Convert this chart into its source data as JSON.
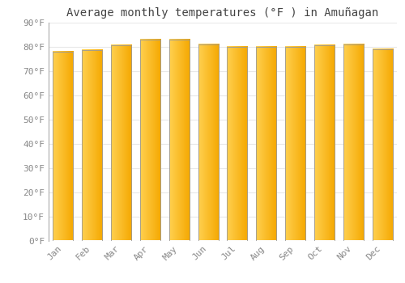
{
  "title": "Average monthly temperatures (°F ) in Amuñagan",
  "months": [
    "Jan",
    "Feb",
    "Mar",
    "Apr",
    "May",
    "Jun",
    "Jul",
    "Aug",
    "Sep",
    "Oct",
    "Nov",
    "Dec"
  ],
  "values": [
    78,
    78.5,
    80.5,
    83,
    83,
    81,
    80,
    80,
    80,
    80.5,
    81,
    79
  ],
  "bar_color_left": "#FFD050",
  "bar_color_right": "#F5A800",
  "bar_border_color": "#999999",
  "ylim": [
    0,
    90
  ],
  "yticks": [
    0,
    10,
    20,
    30,
    40,
    50,
    60,
    70,
    80,
    90
  ],
  "ytick_labels": [
    "0°F",
    "10°F",
    "20°F",
    "30°F",
    "40°F",
    "50°F",
    "60°F",
    "70°F",
    "80°F",
    "90°F"
  ],
  "bg_color": "#ffffff",
  "grid_color": "#e8e8e8",
  "title_fontsize": 10,
  "tick_fontsize": 8,
  "bar_width": 0.7
}
